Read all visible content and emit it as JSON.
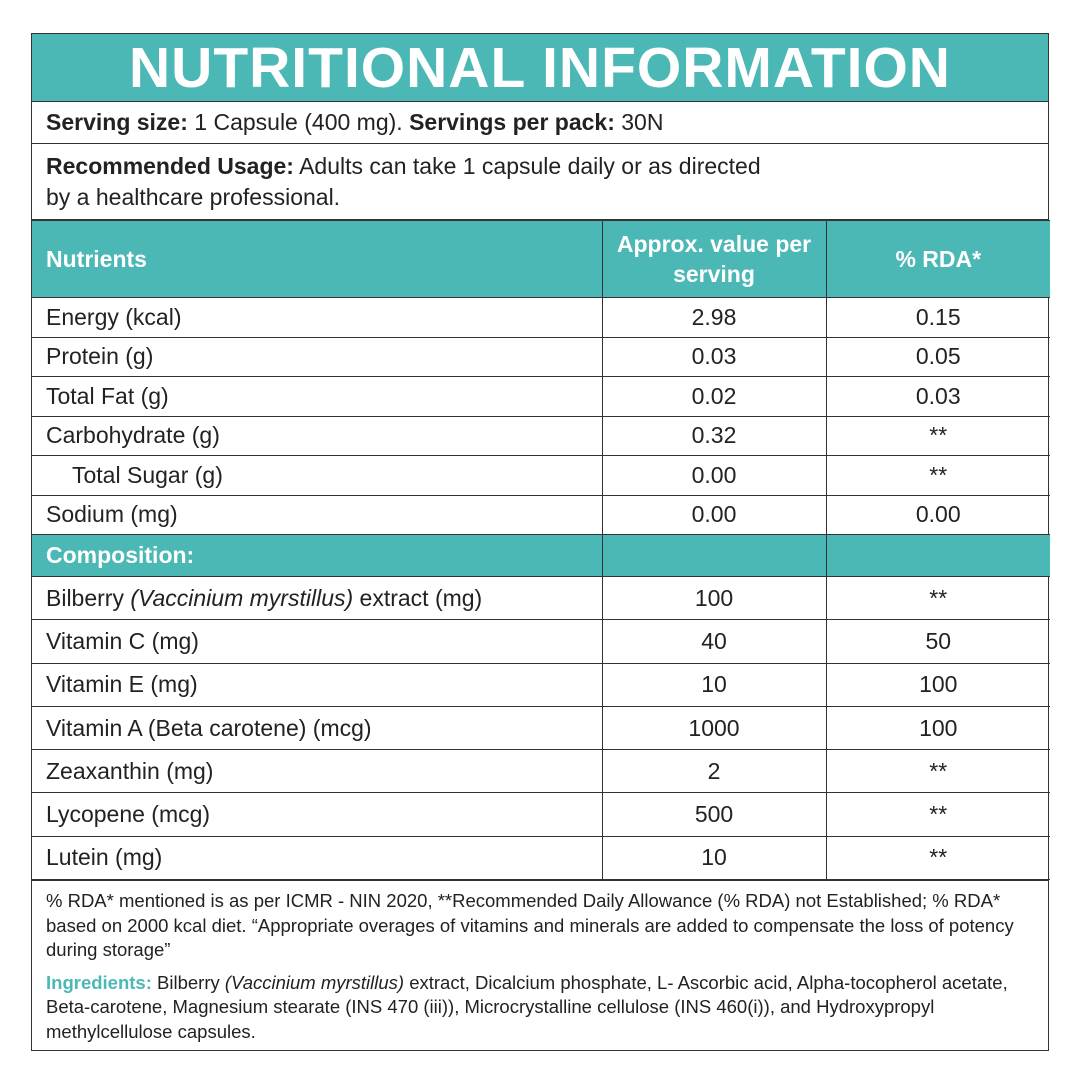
{
  "title": "NUTRITIONAL INFORMATION",
  "serving": {
    "size_label": "Serving size:",
    "size_value": "1 Capsule (400 mg).",
    "pack_label": "Servings per pack:",
    "pack_value": "30N"
  },
  "usage": {
    "label": "Recommended Usage:",
    "text": "Adults can take 1 capsule daily or as directed by a healthcare professional."
  },
  "table": {
    "header": [
      "Nutrients",
      "Approx. value per serving",
      "% RDA*"
    ],
    "rows": [
      {
        "name": "Energy (kcal)",
        "value": "2.98",
        "rda": "0.15"
      },
      {
        "name": "Protein (g)",
        "value": "0.03",
        "rda": "0.05"
      },
      {
        "name": "Total Fat (g)",
        "value": "0.02",
        "rda": "0.03"
      },
      {
        "name": "Carbohydrate (g)",
        "value": "0.32",
        "rda": "**"
      },
      {
        "name": "Total Sugar (g)",
        "value": "0.00",
        "rda": "**",
        "indent": true
      },
      {
        "name": "Sodium (mg)",
        "value": "0.00",
        "rda": "0.00"
      }
    ],
    "section": "Composition:",
    "composition_rows": [
      {
        "name": [
          "Bilberry",
          "(Vaccinium myrstillus)",
          "extract (mg)"
        ],
        "value": "100",
        "rda": "**"
      },
      {
        "name": "Vitamin C (mg)",
        "value": "40",
        "rda": "50"
      },
      {
        "name": "Vitamin E (mg)",
        "value": "10",
        "rda": "100"
      },
      {
        "name": "Vitamin A (Beta carotene) (mcg)",
        "value": "1000",
        "rda": "100"
      },
      {
        "name": "Zeaxanthin (mg)",
        "value": "2",
        "rda": "**"
      },
      {
        "name": "Lycopene (mcg)",
        "value": "500",
        "rda": "**"
      },
      {
        "name": "Lutein (mg)",
        "value": "10",
        "rda": "**"
      }
    ]
  },
  "footer": {
    "note": "% RDA* mentioned is as per ICMR - NIN 2020, **Recommended Daily Allowance (% RDA) not Established; % RDA* based on 2000 kcal diet. “Appropriate overages of vitamins and minerals are added to compensate the loss of potency during storage”",
    "ingredients_label": "Ingredients:",
    "ingredients": [
      "Bilberry",
      "(Vaccinium myrstillus)",
      "extract, Dicalcium phosphate, L- Ascorbic acid, Alpha-tocopherol acetate, Beta-carotene, Magnesium stearate (INS 470 (iii)), Microcrystalline cellulose (INS 460(i)), and Hydroxypropyl methylcellulose capsules."
    ]
  }
}
